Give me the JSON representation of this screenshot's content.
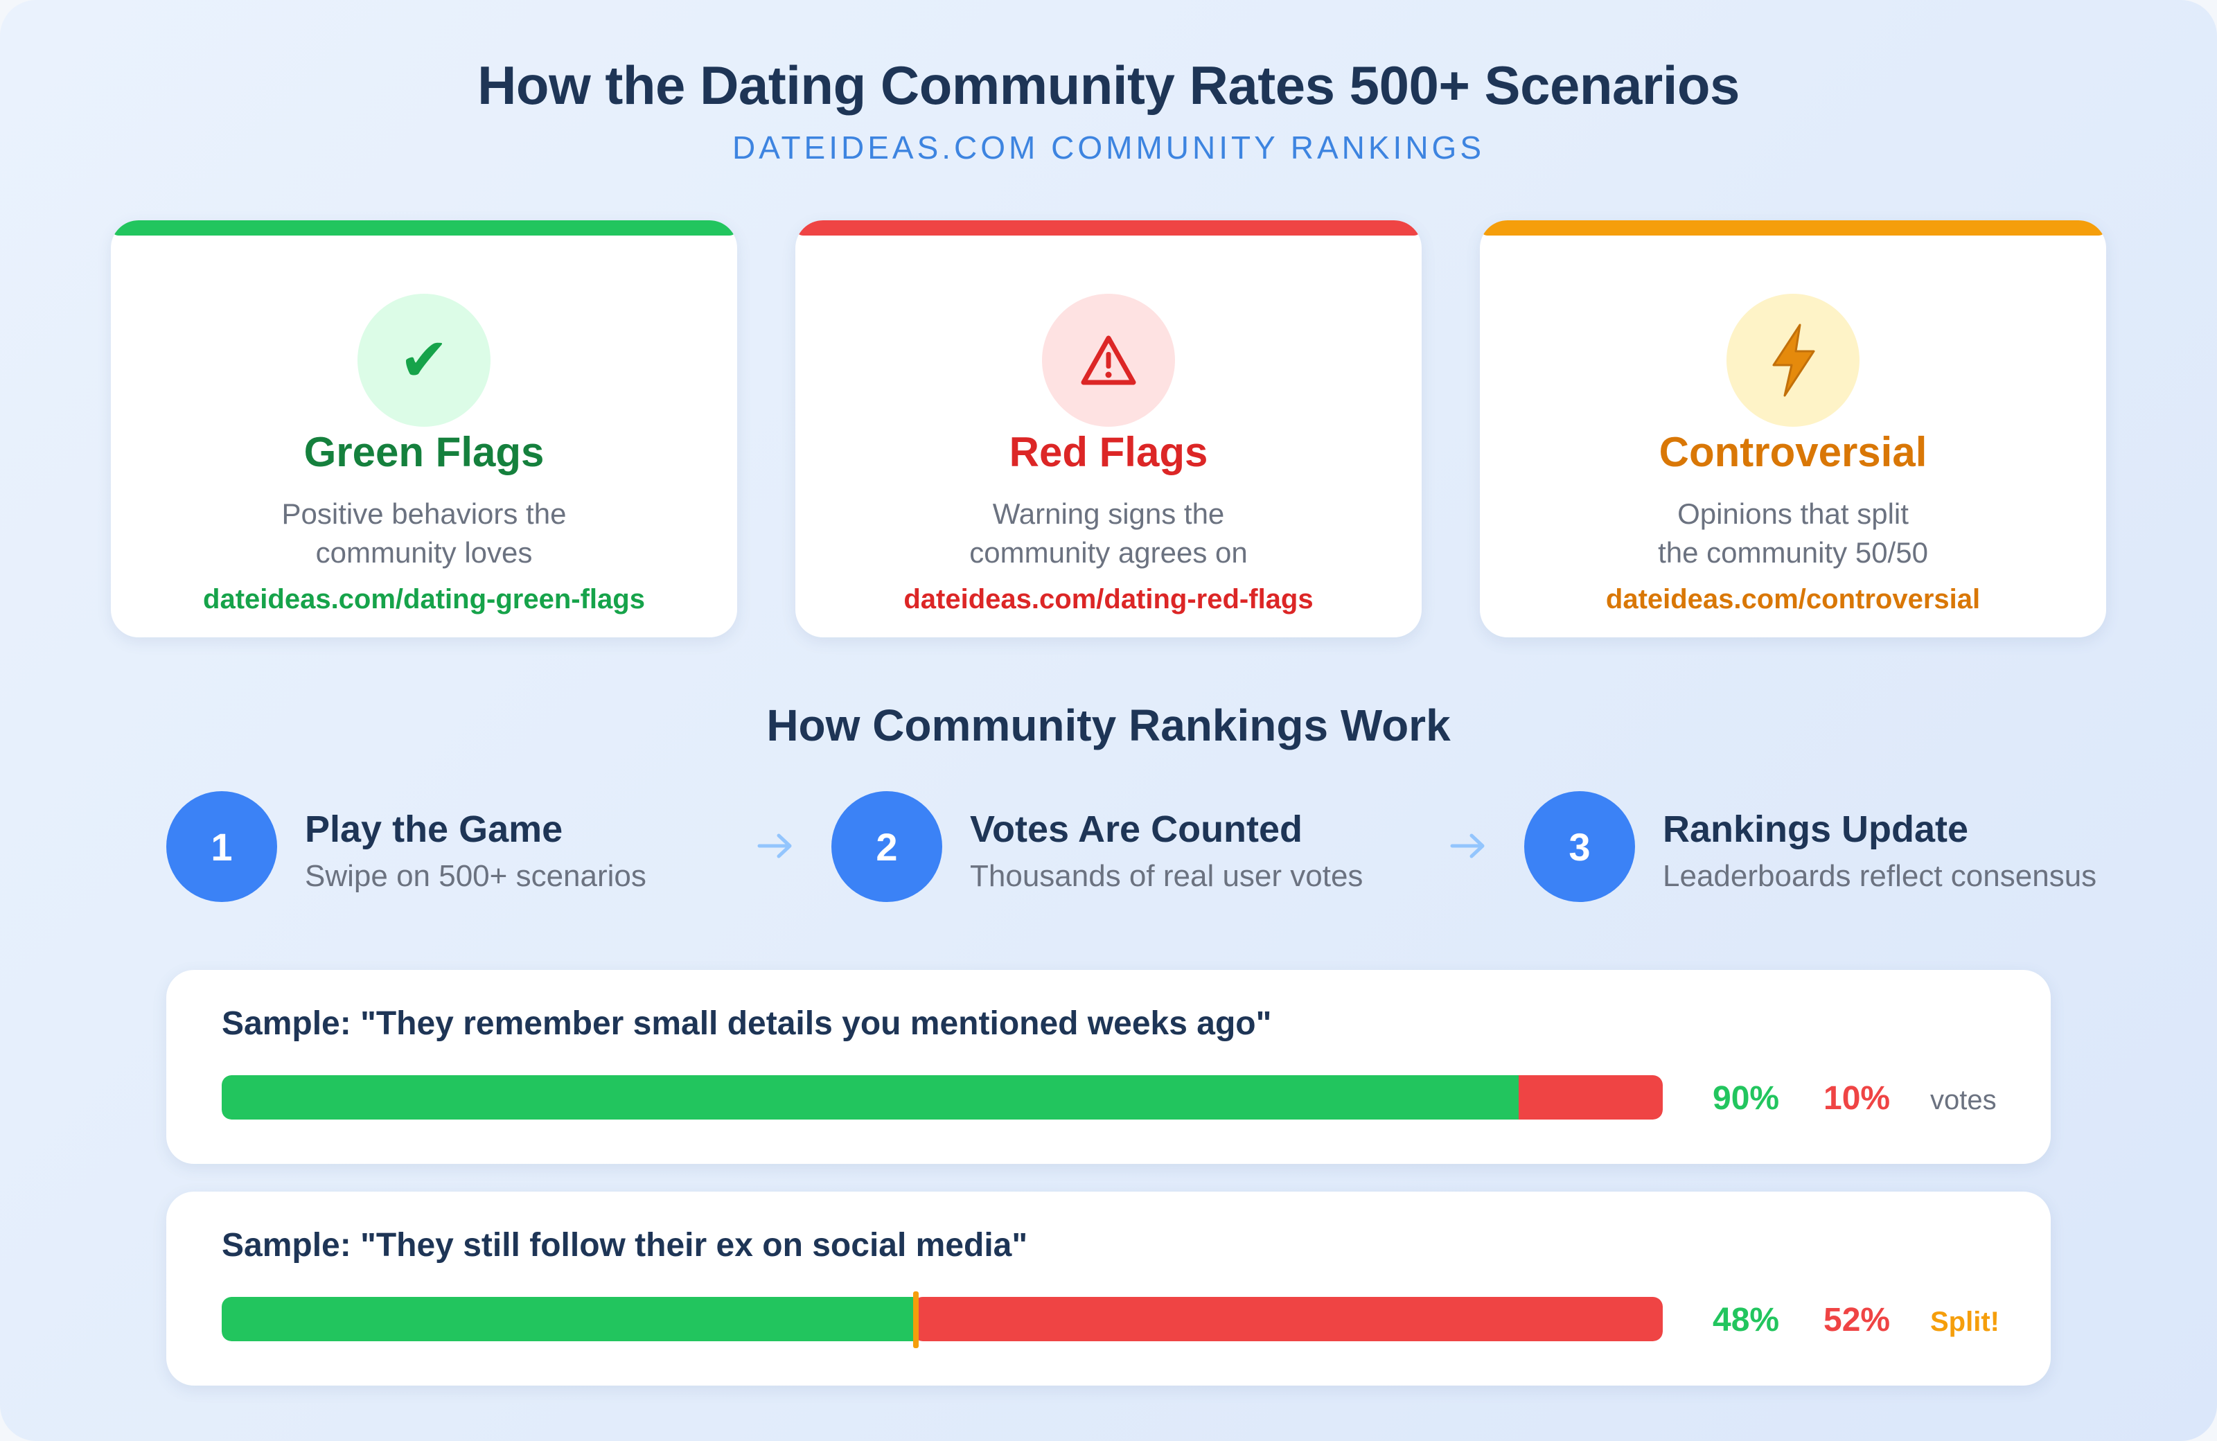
{
  "header": {
    "title": "How the Dating Community Rates 500+ Scenarios",
    "subtitle": "DATEIDEAS.COM COMMUNITY RANKINGS"
  },
  "categories": [
    {
      "icon": "checkmark-icon",
      "glyph": "✔",
      "title": "Green Flags",
      "description_lines": [
        "Positive behaviors the",
        "community loves"
      ],
      "link": "dateideas.com/dating-green-flags",
      "accent": "#22c55e"
    },
    {
      "icon": "warning-triangle-icon",
      "title": "Red Flags",
      "description_lines": [
        "Warning signs the",
        "community agrees on"
      ],
      "link": "dateideas.com/dating-red-flags",
      "accent": "#ef4444"
    },
    {
      "icon": "lightning-bolt-icon",
      "title": "Controversial",
      "description_lines": [
        "Opinions that split",
        "the community 50/50"
      ],
      "link": "dateideas.com/controversial",
      "accent": "#f59e0b"
    }
  ],
  "how_it_works": {
    "title": "How Community Rankings Work",
    "steps": [
      {
        "number": "1",
        "title": "Play the Game",
        "description": "Swipe on 500+ scenarios"
      },
      {
        "number": "2",
        "title": "Votes Are Counted",
        "description": "Thousands of real user votes"
      },
      {
        "number": "3",
        "title": "Rankings Update",
        "description": "Leaderboards reflect consensus"
      }
    ],
    "arrow_icon": "arrow-right-icon"
  },
  "samples": [
    {
      "text": "Sample: \"They remember small details you mentioned weeks ago\"",
      "green_fraction": 0.9,
      "red_fraction": 0.1,
      "green_label": "90%",
      "red_label": "10%",
      "note": "votes"
    },
    {
      "text": "Sample: \"They still follow their ex on social media\"",
      "green_fraction": 0.48,
      "red_fraction": 0.52,
      "green_label": "48%",
      "red_label": "52%",
      "note": "Split!"
    }
  ],
  "colors": {
    "green": "#22c55e",
    "red": "#ef4444",
    "orange": "#f59e0b",
    "blue": "#3b82f6",
    "navy": "#1e3556"
  }
}
